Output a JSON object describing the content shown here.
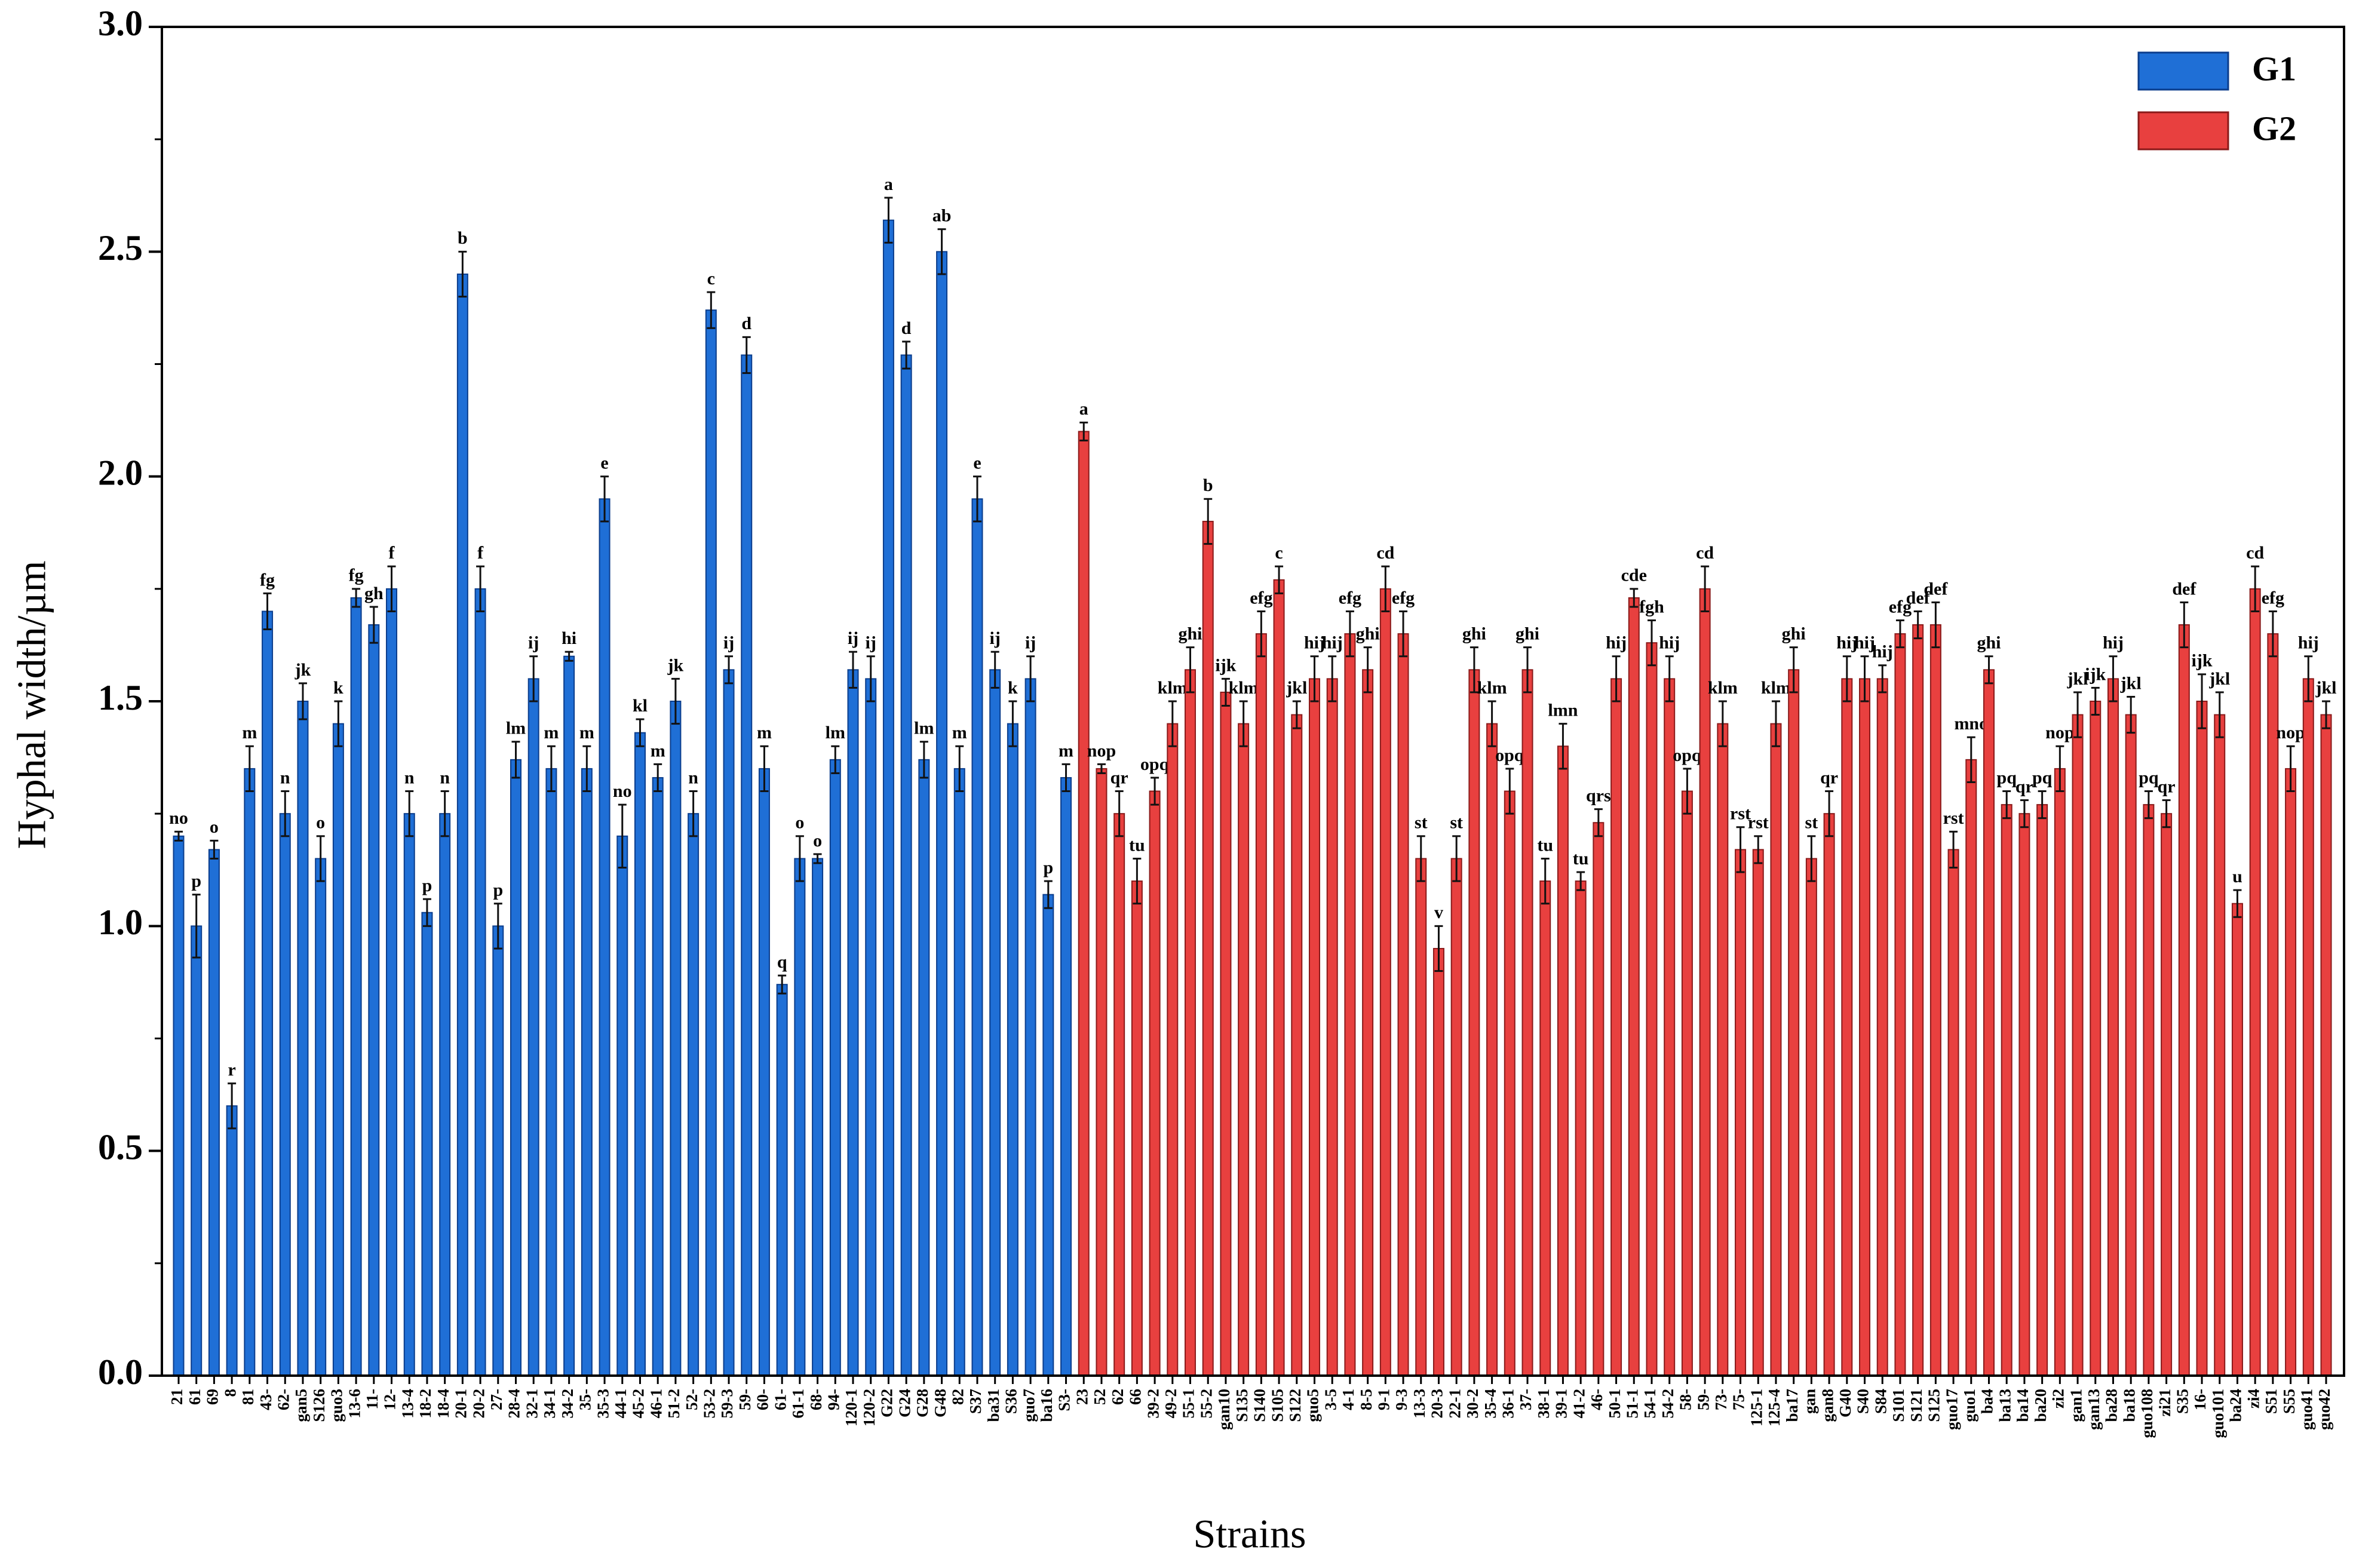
{
  "chart_data": {
    "type": "bar",
    "y_label": "Hyphal width/µm",
    "x_label": "Strains",
    "ylim": [
      0,
      3
    ],
    "yticks": [
      {
        "value": 0,
        "label": "0.0"
      },
      {
        "value": 0.5,
        "label": "0.5"
      },
      {
        "value": 1,
        "label": "1.0"
      },
      {
        "value": 1.5,
        "label": "1.5"
      },
      {
        "value": 2,
        "label": "2.0"
      },
      {
        "value": 2.5,
        "label": "2.5"
      },
      {
        "value": 3,
        "label": "3.0"
      }
    ],
    "legend": "upper right",
    "series": [
      {
        "name": "G1",
        "color": "#1f6fd6",
        "edge": "#0b3d8c",
        "categories": [
          "21",
          "61",
          "69",
          "8",
          "81",
          "43-",
          "62-",
          "gan5",
          "S126",
          "guo3",
          "13-6",
          "11-",
          "12-",
          "13-4",
          "18-2",
          "18-4",
          "20-1",
          "20-2",
          "27-",
          "28-4",
          "32-1",
          "34-1",
          "34-2",
          "35-",
          "35-3",
          "44-1",
          "45-2",
          "46-1",
          "51-2",
          "52-",
          "53-2",
          "59-3",
          "59-",
          "60-",
          "61-",
          "61-1",
          "68-",
          "94-",
          "120-1",
          "120-2",
          "G22",
          "G24",
          "G28",
          "G48",
          "82",
          "S37",
          "ba31",
          "S36",
          "guo7",
          "ba16",
          "S3-"
        ],
        "values": [
          1.2,
          1.0,
          1.17,
          0.6,
          1.35,
          1.7,
          1.25,
          1.5,
          1.15,
          1.45,
          1.73,
          1.67,
          1.75,
          1.25,
          1.03,
          1.25,
          2.45,
          1.75,
          1.0,
          1.37,
          1.55,
          1.35,
          1.6,
          1.35,
          1.95,
          1.2,
          1.43,
          1.33,
          1.5,
          1.25,
          2.37,
          1.57,
          2.27,
          1.35,
          0.87,
          1.15,
          1.15,
          1.37,
          1.57,
          1.55,
          2.57,
          2.27,
          1.37,
          2.5,
          1.35,
          1.95,
          1.57,
          1.45,
          1.55,
          1.07,
          1.33
        ],
        "errors": [
          0.01,
          0.07,
          0.02,
          0.05,
          0.05,
          0.04,
          0.05,
          0.04,
          0.05,
          0.05,
          0.02,
          0.04,
          0.05,
          0.05,
          0.03,
          0.05,
          0.05,
          0.05,
          0.05,
          0.04,
          0.05,
          0.05,
          0.01,
          0.05,
          0.05,
          0.07,
          0.03,
          0.03,
          0.05,
          0.05,
          0.04,
          0.03,
          0.04,
          0.05,
          0.02,
          0.05,
          0.01,
          0.03,
          0.04,
          0.05,
          0.05,
          0.03,
          0.04,
          0.05,
          0.05,
          0.05,
          0.04,
          0.05,
          0.05,
          0.03,
          0.03
        ],
        "letters": [
          "no",
          "p",
          "o",
          "r",
          "m",
          "fg",
          "n",
          "jk",
          "o",
          "k",
          "fg",
          "gh",
          "f",
          "n",
          "p",
          "n",
          "b",
          "f",
          "p",
          "lm",
          "ij",
          "m",
          "hi",
          "m",
          "e",
          "no",
          "kl",
          "m",
          "jk",
          "n",
          "c",
          "ij",
          "d",
          "m",
          "q",
          "o",
          "o",
          "lm",
          "ij",
          "ij",
          "a",
          "d",
          "lm",
          "ab",
          "m",
          "e",
          "ij",
          "k",
          "ij",
          "p",
          "m"
        ]
      },
      {
        "name": "G2",
        "color": "#e8403f",
        "edge": "#8a1a1a",
        "categories": [
          "23",
          "52",
          "62",
          "66",
          "39-2",
          "49-2",
          "55-1",
          "55-2",
          "gan10",
          "S135",
          "S140",
          "S105",
          "S122",
          "guo5",
          "3-5",
          "4-1",
          "8-5",
          "9-1",
          "9-3",
          "13-3",
          "20-3",
          "22-1",
          "30-2",
          "35-4",
          "36-1",
          "37-",
          "38-1",
          "39-1",
          "41-2",
          "46-",
          "50-1",
          "51-1",
          "54-1",
          "54-2",
          "58-",
          "59-",
          "73-",
          "75-",
          "125-1",
          "125-4",
          "ba17",
          "gan",
          "gan8",
          "G40",
          "S40",
          "S84",
          "S101",
          "S121",
          "S125",
          "guo17",
          "guo1",
          "ba4",
          "ba13",
          "ba14",
          "ba20",
          "zi2",
          "gan1",
          "gan13",
          "ba28",
          "ba18",
          "guo108",
          "zi21",
          "S35",
          "16-",
          "guo101",
          "ba24",
          "zi4",
          "S51",
          "S55",
          "guo41",
          "guo42"
        ],
        "values": [
          2.1,
          1.35,
          1.25,
          1.1,
          1.3,
          1.45,
          1.57,
          1.9,
          1.52,
          1.45,
          1.65,
          1.77,
          1.47,
          1.55,
          1.55,
          1.65,
          1.57,
          1.75,
          1.65,
          1.15,
          0.95,
          1.15,
          1.57,
          1.45,
          1.3,
          1.57,
          1.1,
          1.4,
          1.1,
          1.23,
          1.55,
          1.73,
          1.63,
          1.55,
          1.3,
          1.75,
          1.45,
          1.17,
          1.17,
          1.45,
          1.57,
          1.15,
          1.25,
          1.55,
          1.55,
          1.55,
          1.65,
          1.67,
          1.67,
          1.17,
          1.37,
          1.57,
          1.27,
          1.25,
          1.27,
          1.35,
          1.47,
          1.5,
          1.55,
          1.47,
          1.27,
          1.25,
          1.67,
          1.5,
          1.47,
          1.05,
          1.75,
          1.65,
          1.35,
          1.55,
          1.47
        ],
        "errors": [
          0.02,
          0.01,
          0.05,
          0.05,
          0.03,
          0.05,
          0.05,
          0.05,
          0.03,
          0.05,
          0.05,
          0.03,
          0.03,
          0.05,
          0.05,
          0.05,
          0.05,
          0.05,
          0.05,
          0.05,
          0.05,
          0.05,
          0.05,
          0.05,
          0.05,
          0.05,
          0.05,
          0.05,
          0.02,
          0.03,
          0.05,
          0.02,
          0.05,
          0.05,
          0.05,
          0.05,
          0.05,
          0.05,
          0.03,
          0.05,
          0.05,
          0.05,
          0.05,
          0.05,
          0.05,
          0.03,
          0.03,
          0.03,
          0.05,
          0.04,
          0.05,
          0.03,
          0.03,
          0.03,
          0.03,
          0.05,
          0.05,
          0.03,
          0.05,
          0.04,
          0.03,
          0.03,
          0.05,
          0.06,
          0.05,
          0.03,
          0.05,
          0.05,
          0.05,
          0.05,
          0.03
        ],
        "letters": [
          "a",
          "nop",
          "qr",
          "tu",
          "opq",
          "klm",
          "ghi",
          "b",
          "ijk",
          "klm",
          "efg",
          "c",
          "jkl",
          "hij",
          "hij",
          "efg",
          "ghi",
          "cd",
          "efg",
          "st",
          "v",
          "st",
          "ghi",
          "klm",
          "opq",
          "ghi",
          "tu",
          "lmn",
          "tu",
          "qrs",
          "hij",
          "cde",
          "fgh",
          "hij",
          "opq",
          "cd",
          "klm",
          "rst",
          "rst",
          "klm",
          "ghi",
          "st",
          "qr",
          "hij",
          "hij",
          "hij",
          "efg",
          "def",
          "def",
          "rst",
          "mno",
          "ghi",
          "pq",
          "qr",
          "pq",
          "nop",
          "jkl",
          "ijk",
          "hij",
          "jkl",
          "pq",
          "qr",
          "def",
          "ijk",
          "jkl",
          "u",
          "cd",
          "efg",
          "nop",
          "hij",
          "jkl"
        ]
      }
    ]
  }
}
